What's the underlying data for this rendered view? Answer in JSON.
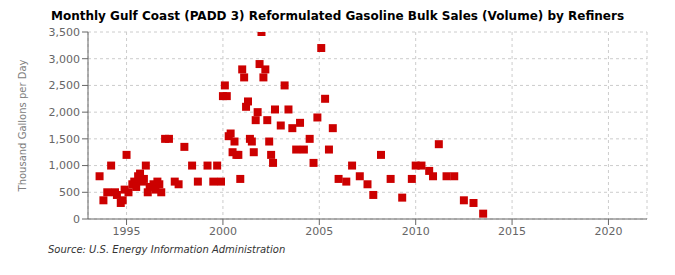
{
  "chart_data": {
    "type": "scatter",
    "title": "Monthly Gulf Coast (PADD 3) Reformulated Gasoline Bulk Sales (Volume) by Refiners",
    "ylabel": "Thousand Gallons per Day",
    "annotations": [
      "Source: U.S. Energy Information Administration"
    ],
    "color": "#cc0000",
    "marker": "square",
    "grid": true,
    "xlim": [
      1993.0,
      2022.0
    ],
    "ylim": [
      0,
      3500
    ],
    "xticks": [
      1995,
      2000,
      2005,
      2010,
      2015,
      2020
    ],
    "yticks": [
      0,
      500,
      {
        "value": 1000,
        "label": "1,000"
      },
      {
        "value": 1500,
        "label": "1,500"
      },
      {
        "value": 2000,
        "label": "2,000"
      },
      {
        "value": 2500,
        "label": "2,500"
      },
      {
        "value": 3000,
        "label": "3,000"
      },
      {
        "value": 3500,
        "label": "3,500"
      }
    ],
    "x": [
      1993.6,
      1993.8,
      1994.0,
      1994.2,
      1994.4,
      1994.5,
      1994.7,
      1994.8,
      1994.9,
      1995.0,
      1995.1,
      1995.3,
      1995.4,
      1995.5,
      1995.6,
      1995.7,
      1995.8,
      1995.9,
      1996.0,
      1996.1,
      1996.2,
      1996.4,
      1996.5,
      1996.6,
      1996.7,
      1996.8,
      1997.0,
      1997.2,
      1997.5,
      1997.7,
      1998.0,
      1998.4,
      1998.7,
      1999.2,
      1999.5,
      1999.7,
      1999.9,
      2000.0,
      2000.1,
      2000.2,
      2000.3,
      2000.4,
      2000.5,
      2000.6,
      2000.7,
      2000.8,
      2000.9,
      2001.0,
      2001.1,
      2001.2,
      2001.3,
      2001.4,
      2001.5,
      2001.6,
      2001.7,
      2001.8,
      2001.9,
      2002.0,
      2002.1,
      2002.2,
      2002.3,
      2002.4,
      2002.5,
      2002.6,
      2002.7,
      2003.0,
      2003.2,
      2003.4,
      2003.6,
      2003.8,
      2004.0,
      2004.2,
      2004.5,
      2004.7,
      2004.9,
      2005.1,
      2005.3,
      2005.5,
      2005.7,
      2006.0,
      2006.4,
      2006.7,
      2007.1,
      2007.5,
      2007.8,
      2008.2,
      2008.7,
      2009.3,
      2009.8,
      2010.0,
      2010.3,
      2010.7,
      2010.9,
      2011.2,
      2011.6,
      2012.0,
      2012.5,
      2013.0,
      2013.5
    ],
    "values": [
      800,
      350,
      500,
      1000,
      500,
      450,
      300,
      350,
      550,
      1200,
      500,
      650,
      700,
      600,
      800,
      850,
      700,
      750,
      1000,
      500,
      600,
      650,
      550,
      700,
      650,
      500,
      1500,
      1500,
      700,
      650,
      1350,
      1000,
      700,
      1000,
      700,
      1000,
      700,
      2300,
      2500,
      2300,
      1550,
      1600,
      1250,
      1450,
      1200,
      1200,
      750,
      2800,
      2650,
      2100,
      2200,
      1500,
      1450,
      1250,
      1850,
      2000,
      2900,
      3500,
      2650,
      2800,
      1850,
      1450,
      1200,
      1050,
      2050,
      1750,
      2500,
      2050,
      1700,
      1300,
      1800,
      1300,
      1500,
      1050,
      1900,
      3200,
      2250,
      1300,
      1700,
      750,
      700,
      1000,
      800,
      650,
      450,
      1200,
      750,
      400,
      750,
      1000,
      1000,
      900,
      800,
      1400,
      800,
      800,
      350,
      300,
      100
    ]
  }
}
